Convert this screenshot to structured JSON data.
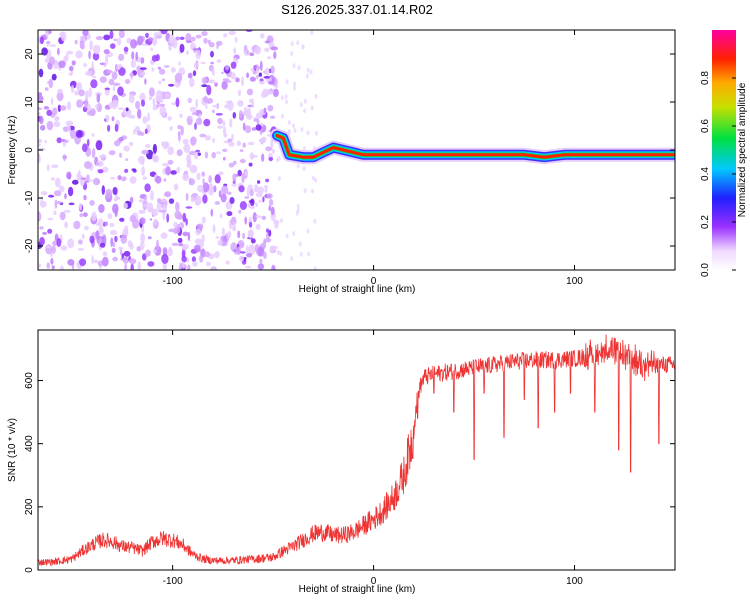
{
  "figure": {
    "title": "S126.2025.337.01.14.R02"
  },
  "chart_data": [
    {
      "type": "heatmap",
      "name": "spectrogram",
      "xlabel": "Height of straight line (km)",
      "ylabel": "Frequency (Hz)",
      "xlim": [
        -167,
        150
      ],
      "ylim": [
        -25,
        25
      ],
      "xticks": [
        -100,
        0,
        100
      ],
      "yticks": [
        -20,
        -10,
        0,
        10,
        20
      ],
      "noise_region_x": [
        -167,
        -48
      ],
      "carrier_track": [
        [
          -48,
          3.0
        ],
        [
          -45,
          2.5
        ],
        [
          -42,
          -1.0
        ],
        [
          -35,
          -1.5
        ],
        [
          -30,
          -1.5
        ],
        [
          -25,
          -0.5
        ],
        [
          -20,
          0.5
        ],
        [
          -15,
          0.0
        ],
        [
          -10,
          -0.5
        ],
        [
          -5,
          -1.0
        ],
        [
          0,
          -1.0
        ],
        [
          20,
          -1.0
        ],
        [
          60,
          -1.0
        ],
        [
          75,
          -1.0
        ],
        [
          85,
          -1.5
        ],
        [
          95,
          -1.0
        ],
        [
          110,
          -1.0
        ],
        [
          150,
          -1.0
        ]
      ],
      "colorbar": {
        "label": "Normalized spectral amplitude",
        "range": [
          0.0,
          1.0
        ],
        "ticks": [
          0.0,
          0.2,
          0.4,
          0.6,
          0.8
        ],
        "tick_labels": [
          "0.0",
          "0.2",
          "0.4",
          "0.6",
          "0.8"
        ]
      }
    },
    {
      "type": "line",
      "name": "snr",
      "xlabel": "Height of straight line (km)",
      "ylabel": "SNR (10 * v/v)",
      "xlim": [
        -167,
        150
      ],
      "ylim": [
        0,
        760
      ],
      "xticks": [
        -100,
        0,
        100
      ],
      "yticks": [
        0,
        200,
        400,
        600
      ],
      "color": "#ee3333",
      "series": [
        {
          "name": "SNR",
          "x": [
            -167,
            -160,
            -150,
            -145,
            -140,
            -135,
            -130,
            -125,
            -120,
            -115,
            -110,
            -105,
            -100,
            -95,
            -90,
            -85,
            -80,
            -70,
            -60,
            -50,
            -45,
            -40,
            -35,
            -30,
            -25,
            -20,
            -15,
            -10,
            -5,
            0,
            5,
            10,
            15,
            18,
            20,
            22,
            25,
            30,
            40,
            50,
            60,
            70,
            80,
            90,
            100,
            110,
            115,
            120,
            125,
            130,
            140,
            150
          ],
          "y": [
            25,
            25,
            35,
            60,
            80,
            95,
            90,
            75,
            70,
            60,
            90,
            100,
            95,
            80,
            50,
            35,
            30,
            30,
            35,
            40,
            60,
            75,
            95,
            115,
            120,
            110,
            110,
            120,
            140,
            160,
            190,
            230,
            300,
            380,
            440,
            560,
            610,
            620,
            630,
            640,
            650,
            660,
            665,
            665,
            670,
            680,
            700,
            690,
            680,
            660,
            650,
            650
          ]
        }
      ],
      "dips": [
        [
          22,
          480
        ],
        [
          30,
          560
        ],
        [
          40,
          500
        ],
        [
          50,
          350
        ],
        [
          55,
          560
        ],
        [
          65,
          420
        ],
        [
          75,
          540
        ],
        [
          82,
          450
        ],
        [
          90,
          500
        ],
        [
          98,
          560
        ],
        [
          110,
          500
        ],
        [
          122,
          380
        ],
        [
          128,
          310
        ],
        [
          142,
          400
        ]
      ]
    }
  ]
}
